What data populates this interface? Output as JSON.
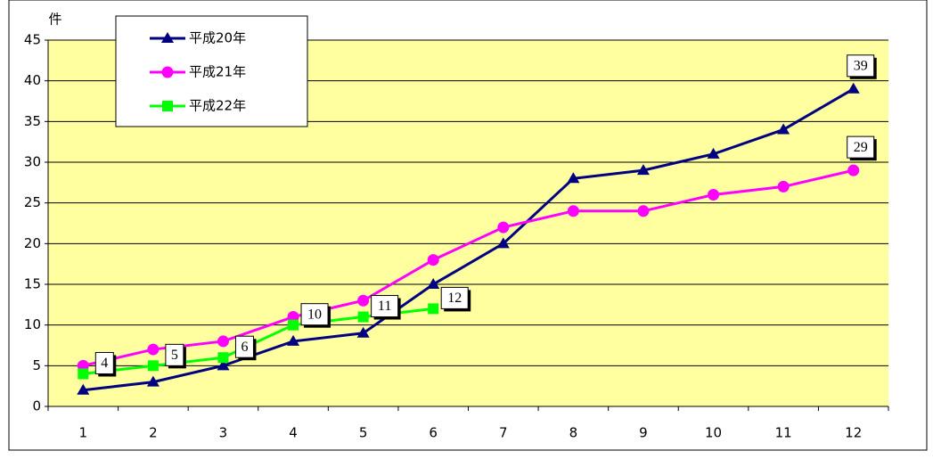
{
  "chart_data": {
    "type": "line",
    "y_label": "件",
    "categories": [
      "1",
      "2",
      "3",
      "4",
      "5",
      "6",
      "7",
      "8",
      "9",
      "10",
      "11",
      "12"
    ],
    "series": [
      {
        "name": "平成20年",
        "color": "#000080",
        "marker": "triangle",
        "values": [
          2,
          3,
          5,
          8,
          9,
          15,
          20,
          28,
          29,
          31,
          34,
          39
        ],
        "value_labels": [
          null,
          null,
          null,
          null,
          null,
          null,
          null,
          null,
          null,
          null,
          null,
          "39"
        ]
      },
      {
        "name": "平成21年",
        "color": "#ff00ff",
        "marker": "circle",
        "values": [
          5,
          7,
          8,
          11,
          13,
          18,
          22,
          24,
          24,
          26,
          27,
          29
        ],
        "value_labels": [
          null,
          null,
          null,
          null,
          null,
          null,
          null,
          null,
          null,
          null,
          null,
          "29"
        ]
      },
      {
        "name": "平成22年",
        "color": "#00ff00",
        "marker": "square",
        "values": [
          4,
          5,
          6,
          10,
          11,
          12,
          null,
          null,
          null,
          null,
          null,
          null
        ],
        "value_labels": [
          "4",
          "5",
          "6",
          "10",
          "11",
          "12",
          null,
          null,
          null,
          null,
          null,
          null
        ]
      }
    ],
    "ylim": [
      0,
      45
    ],
    "yticks": [
      0,
      5,
      10,
      15,
      20,
      25,
      30,
      35,
      40,
      45
    ],
    "grid": true
  }
}
